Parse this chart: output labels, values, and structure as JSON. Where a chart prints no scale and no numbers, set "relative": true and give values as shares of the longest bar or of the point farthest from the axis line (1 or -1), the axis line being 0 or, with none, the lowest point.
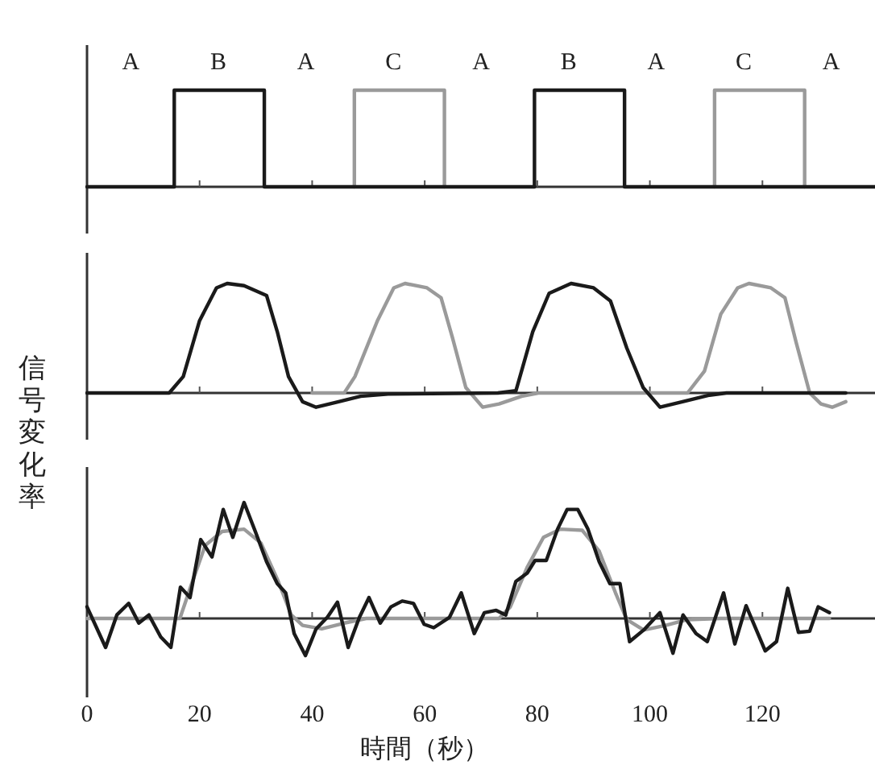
{
  "chart_data": [
    {
      "type": "step",
      "relative": true,
      "xlim": [
        0,
        140
      ],
      "xticks": [
        0,
        20,
        40,
        60,
        80,
        100,
        120
      ],
      "tick_labels": false,
      "series": [
        {
          "color": "#9a9a9a",
          "x": [
            47.5,
            47.5,
            63.5
          ],
          "values": [
            0,
            1,
            0
          ]
        },
        {
          "color": "#9a9a9a",
          "x": [
            111.5,
            111.5,
            127.5
          ],
          "values": [
            0,
            1,
            0
          ]
        },
        {
          "color": "#1a1a1a",
          "x": [
            0,
            15.5,
            31.5,
            79.5,
            95.5,
            140
          ],
          "values": [
            0,
            1,
            0,
            1,
            0,
            0
          ]
        }
      ],
      "annotations": [
        "A",
        "B",
        "A",
        "C",
        "A",
        "B",
        "A",
        "C",
        "A"
      ]
    },
    {
      "type": "line",
      "relative": true,
      "xlim": [
        0,
        140
      ],
      "xticks": [
        0,
        20,
        40,
        60,
        80,
        100,
        120
      ],
      "tick_labels": false,
      "ylabel": "信号変化率",
      "series": [
        {
          "color": "#9a9a9a",
          "x": [
            40,
            45.7,
            47.6,
            51.6,
            54.5,
            56.5,
            60.4,
            62.9,
            64.9,
            67.3,
            70.3,
            73.2,
            77.2,
            80.2,
            106.7,
            109.7,
            112.6,
            115.6,
            117.6,
            121.5,
            124,
            126,
            128.4,
            130.4,
            132.4,
            134.8
          ],
          "values": [
            0,
            0,
            0.15,
            0.66,
            0.96,
            1,
            0.96,
            0.87,
            0.51,
            0.05,
            -0.13,
            -0.1,
            -0.03,
            0,
            0,
            0.2,
            0.72,
            0.96,
            1,
            0.96,
            0.87,
            0.46,
            0,
            -0.1,
            -0.13,
            -0.08
          ]
        },
        {
          "color": "#1a1a1a",
          "x": [
            0,
            14.6,
            17.1,
            20,
            23,
            24.9,
            27.9,
            31.9,
            33.8,
            35.8,
            38.3,
            40.7,
            44.7,
            48.6,
            53.5,
            73,
            76.2,
            79.2,
            82.1,
            86,
            90,
            93,
            95.9,
            98.8,
            101.8,
            105.8,
            110.6,
            113.6,
            134.8
          ],
          "values": [
            0,
            0,
            0.15,
            0.66,
            0.96,
            1,
            0.98,
            0.89,
            0.56,
            0.15,
            -0.08,
            -0.13,
            -0.08,
            -0.03,
            -0.01,
            0,
            0.02,
            0.56,
            0.91,
            1,
            0.96,
            0.84,
            0.41,
            0.05,
            -0.13,
            -0.08,
            -0.02,
            0,
            0
          ]
        }
      ]
    },
    {
      "type": "line",
      "relative": true,
      "xlim": [
        0,
        140
      ],
      "xticks": [
        0,
        20,
        40,
        60,
        80,
        100,
        120
      ],
      "tick_labels": "x",
      "xlabel": "時間（秒）",
      "series": [
        {
          "color": "#9a9a9a",
          "x": [
            0,
            16.5,
            18.6,
            21,
            24,
            27.9,
            30.9,
            33.8,
            36.3,
            38.3,
            41.7,
            45.7,
            49.6,
            73.2,
            75.2,
            78.2,
            81.1,
            84.1,
            88,
            91,
            93.9,
            95.9,
            98.9,
            102.8,
            106.7,
            112.6,
            131.9
          ],
          "values": [
            0,
            0,
            0.3,
            0.63,
            0.75,
            0.77,
            0.65,
            0.34,
            0.03,
            -0.06,
            -0.09,
            -0.04,
            0,
            0,
            0.1,
            0.44,
            0.7,
            0.77,
            0.76,
            0.58,
            0.22,
            -0.01,
            -0.1,
            -0.06,
            -0.01,
            0,
            0
          ]
        },
        {
          "color": "#1a1a1a",
          "x": [
            0,
            3.3,
            5.3,
            7.4,
            9.2,
            11,
            13.1,
            14.9,
            16.6,
            18.3,
            20.2,
            22.2,
            24.2,
            25.9,
            27.9,
            29.9,
            31.9,
            33.8,
            35.3,
            36.8,
            38.8,
            40.7,
            42.7,
            44.5,
            46.4,
            48.4,
            50.1,
            52.1,
            54,
            56,
            58,
            59.9,
            61.6,
            64.4,
            66.5,
            68.8,
            70.6,
            72.7,
            74.4,
            76.2,
            78.2,
            79.6,
            81.6,
            83.6,
            85.3,
            87.2,
            89,
            91,
            92.9,
            94.7,
            96.4,
            98.9,
            101.8,
            104.1,
            105.9,
            108.2,
            110.2,
            113.1,
            115.1,
            117.1,
            120.5,
            122.5,
            124.5,
            126.4,
            128.4,
            129.9,
            131.9
          ],
          "values": [
            0.1,
            -0.25,
            0.03,
            0.13,
            -0.04,
            0.03,
            -0.16,
            -0.25,
            0.27,
            0.18,
            0.68,
            0.53,
            0.94,
            0.7,
            1,
            0.75,
            0.49,
            0.3,
            0.22,
            -0.13,
            -0.32,
            -0.09,
            0.01,
            0.14,
            -0.25,
            0.01,
            0.18,
            -0.04,
            0.1,
            0.15,
            0.13,
            -0.05,
            -0.08,
            0.01,
            0.22,
            -0.13,
            0.05,
            0.07,
            0.03,
            0.32,
            0.39,
            0.5,
            0.5,
            0.77,
            0.94,
            0.94,
            0.77,
            0.49,
            0.3,
            0.3,
            -0.2,
            -0.1,
            0.05,
            -0.3,
            0.03,
            -0.13,
            -0.2,
            0.22,
            -0.22,
            0.11,
            -0.28,
            -0.2,
            0.26,
            -0.12,
            -0.11,
            0.1,
            0.05
          ]
        }
      ]
    }
  ]
}
